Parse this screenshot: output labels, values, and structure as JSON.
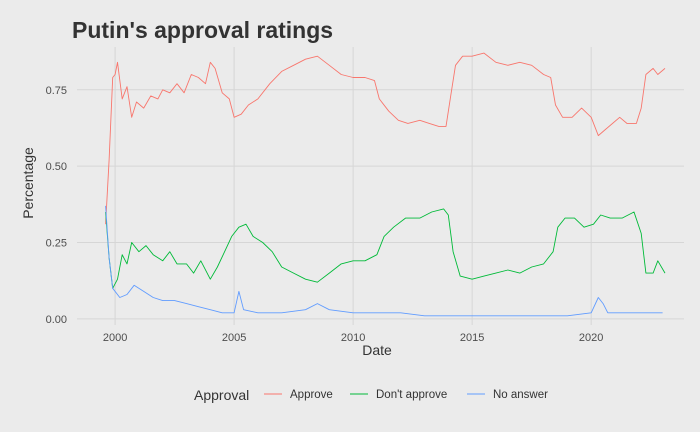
{
  "chart_data": {
    "type": "line",
    "title": "Putin's approval ratings",
    "xlabel": "Date",
    "ylabel": "Percentage",
    "xlim": [
      1998.4,
      2023.9
    ],
    "ylim": [
      -0.02,
      0.89
    ],
    "x_ticks": [
      2000,
      2005,
      2010,
      2015,
      2020
    ],
    "y_ticks": [
      0.0,
      0.25,
      0.5,
      0.75
    ],
    "y_tick_labels": [
      "0.00",
      "0.25",
      "0.50",
      "0.75"
    ],
    "grid": true,
    "legend": {
      "title": "Approval",
      "position": "bottom"
    },
    "series": [
      {
        "name": "Approve",
        "color": "#F8766D",
        "points": [
          [
            1999.6,
            0.31
          ],
          [
            1999.75,
            0.52
          ],
          [
            1999.9,
            0.79
          ],
          [
            2000.0,
            0.8
          ],
          [
            2000.1,
            0.84
          ],
          [
            2000.3,
            0.72
          ],
          [
            2000.5,
            0.76
          ],
          [
            2000.7,
            0.66
          ],
          [
            2000.9,
            0.71
          ],
          [
            2001.2,
            0.69
          ],
          [
            2001.5,
            0.73
          ],
          [
            2001.8,
            0.72
          ],
          [
            2002.0,
            0.75
          ],
          [
            2002.3,
            0.74
          ],
          [
            2002.6,
            0.77
          ],
          [
            2002.9,
            0.74
          ],
          [
            2003.2,
            0.8
          ],
          [
            2003.5,
            0.79
          ],
          [
            2003.8,
            0.77
          ],
          [
            2004.0,
            0.84
          ],
          [
            2004.2,
            0.82
          ],
          [
            2004.5,
            0.74
          ],
          [
            2004.8,
            0.72
          ],
          [
            2005.0,
            0.66
          ],
          [
            2005.3,
            0.67
          ],
          [
            2005.6,
            0.7
          ],
          [
            2006.0,
            0.72
          ],
          [
            2006.5,
            0.77
          ],
          [
            2007.0,
            0.81
          ],
          [
            2007.5,
            0.83
          ],
          [
            2008.0,
            0.85
          ],
          [
            2008.5,
            0.86
          ],
          [
            2009.0,
            0.83
          ],
          [
            2009.5,
            0.8
          ],
          [
            2010.0,
            0.79
          ],
          [
            2010.5,
            0.79
          ],
          [
            2010.9,
            0.78
          ],
          [
            2011.1,
            0.72
          ],
          [
            2011.5,
            0.68
          ],
          [
            2011.9,
            0.65
          ],
          [
            2012.3,
            0.64
          ],
          [
            2012.8,
            0.65
          ],
          [
            2013.2,
            0.64
          ],
          [
            2013.6,
            0.63
          ],
          [
            2013.9,
            0.63
          ],
          [
            2014.1,
            0.73
          ],
          [
            2014.3,
            0.83
          ],
          [
            2014.6,
            0.86
          ],
          [
            2015.0,
            0.86
          ],
          [
            2015.5,
            0.87
          ],
          [
            2016.0,
            0.84
          ],
          [
            2016.5,
            0.83
          ],
          [
            2017.0,
            0.84
          ],
          [
            2017.5,
            0.83
          ],
          [
            2018.0,
            0.8
          ],
          [
            2018.3,
            0.79
          ],
          [
            2018.5,
            0.7
          ],
          [
            2018.8,
            0.66
          ],
          [
            2019.2,
            0.66
          ],
          [
            2019.6,
            0.69
          ],
          [
            2020.0,
            0.66
          ],
          [
            2020.3,
            0.6
          ],
          [
            2020.6,
            0.62
          ],
          [
            2020.9,
            0.64
          ],
          [
            2021.2,
            0.66
          ],
          [
            2021.5,
            0.64
          ],
          [
            2021.9,
            0.64
          ],
          [
            2022.1,
            0.69
          ],
          [
            2022.3,
            0.8
          ],
          [
            2022.6,
            0.82
          ],
          [
            2022.8,
            0.8
          ],
          [
            2023.1,
            0.82
          ]
        ]
      },
      {
        "name": "Don't approve",
        "color": "#00BA38",
        "points": [
          [
            1999.6,
            0.35
          ],
          [
            1999.75,
            0.2
          ],
          [
            1999.9,
            0.1
          ],
          [
            2000.1,
            0.13
          ],
          [
            2000.3,
            0.21
          ],
          [
            2000.5,
            0.18
          ],
          [
            2000.7,
            0.25
          ],
          [
            2001.0,
            0.22
          ],
          [
            2001.3,
            0.24
          ],
          [
            2001.6,
            0.21
          ],
          [
            2002.0,
            0.19
          ],
          [
            2002.3,
            0.22
          ],
          [
            2002.6,
            0.18
          ],
          [
            2003.0,
            0.18
          ],
          [
            2003.3,
            0.15
          ],
          [
            2003.6,
            0.19
          ],
          [
            2004.0,
            0.13
          ],
          [
            2004.3,
            0.17
          ],
          [
            2004.6,
            0.22
          ],
          [
            2004.9,
            0.27
          ],
          [
            2005.2,
            0.3
          ],
          [
            2005.5,
            0.31
          ],
          [
            2005.8,
            0.27
          ],
          [
            2006.2,
            0.25
          ],
          [
            2006.6,
            0.22
          ],
          [
            2007.0,
            0.17
          ],
          [
            2007.5,
            0.15
          ],
          [
            2008.0,
            0.13
          ],
          [
            2008.5,
            0.12
          ],
          [
            2009.0,
            0.15
          ],
          [
            2009.5,
            0.18
          ],
          [
            2010.0,
            0.19
          ],
          [
            2010.5,
            0.19
          ],
          [
            2011.0,
            0.21
          ],
          [
            2011.3,
            0.27
          ],
          [
            2011.7,
            0.3
          ],
          [
            2012.2,
            0.33
          ],
          [
            2012.8,
            0.33
          ],
          [
            2013.3,
            0.35
          ],
          [
            2013.8,
            0.36
          ],
          [
            2014.0,
            0.34
          ],
          [
            2014.2,
            0.22
          ],
          [
            2014.5,
            0.14
          ],
          [
            2015.0,
            0.13
          ],
          [
            2015.5,
            0.14
          ],
          [
            2016.0,
            0.15
          ],
          [
            2016.5,
            0.16
          ],
          [
            2017.0,
            0.15
          ],
          [
            2017.5,
            0.17
          ],
          [
            2018.0,
            0.18
          ],
          [
            2018.4,
            0.22
          ],
          [
            2018.6,
            0.3
          ],
          [
            2018.9,
            0.33
          ],
          [
            2019.3,
            0.33
          ],
          [
            2019.7,
            0.3
          ],
          [
            2020.1,
            0.31
          ],
          [
            2020.4,
            0.34
          ],
          [
            2020.8,
            0.33
          ],
          [
            2021.3,
            0.33
          ],
          [
            2021.8,
            0.35
          ],
          [
            2022.1,
            0.28
          ],
          [
            2022.3,
            0.15
          ],
          [
            2022.6,
            0.15
          ],
          [
            2022.8,
            0.19
          ],
          [
            2023.1,
            0.15
          ]
        ]
      },
      {
        "name": "No answer",
        "color": "#619CFF",
        "points": [
          [
            1999.6,
            0.37
          ],
          [
            1999.75,
            0.2
          ],
          [
            1999.9,
            0.1
          ],
          [
            2000.2,
            0.07
          ],
          [
            2000.5,
            0.08
          ],
          [
            2000.8,
            0.11
          ],
          [
            2001.2,
            0.09
          ],
          [
            2001.6,
            0.07
          ],
          [
            2002.0,
            0.06
          ],
          [
            2002.5,
            0.06
          ],
          [
            2003.0,
            0.05
          ],
          [
            2003.5,
            0.04
          ],
          [
            2004.0,
            0.03
          ],
          [
            2004.5,
            0.02
          ],
          [
            2005.0,
            0.02
          ],
          [
            2005.2,
            0.09
          ],
          [
            2005.4,
            0.03
          ],
          [
            2006.0,
            0.02
          ],
          [
            2007.0,
            0.02
          ],
          [
            2008.0,
            0.03
          ],
          [
            2008.5,
            0.05
          ],
          [
            2009.0,
            0.03
          ],
          [
            2010.0,
            0.02
          ],
          [
            2011.0,
            0.02
          ],
          [
            2012.0,
            0.02
          ],
          [
            2013.0,
            0.01
          ],
          [
            2014.0,
            0.01
          ],
          [
            2015.0,
            0.01
          ],
          [
            2016.0,
            0.01
          ],
          [
            2017.0,
            0.01
          ],
          [
            2018.0,
            0.01
          ],
          [
            2019.0,
            0.01
          ],
          [
            2020.0,
            0.02
          ],
          [
            2020.3,
            0.07
          ],
          [
            2020.5,
            0.05
          ],
          [
            2020.7,
            0.02
          ],
          [
            2021.0,
            0.02
          ],
          [
            2022.0,
            0.02
          ],
          [
            2023.0,
            0.02
          ]
        ]
      }
    ]
  }
}
